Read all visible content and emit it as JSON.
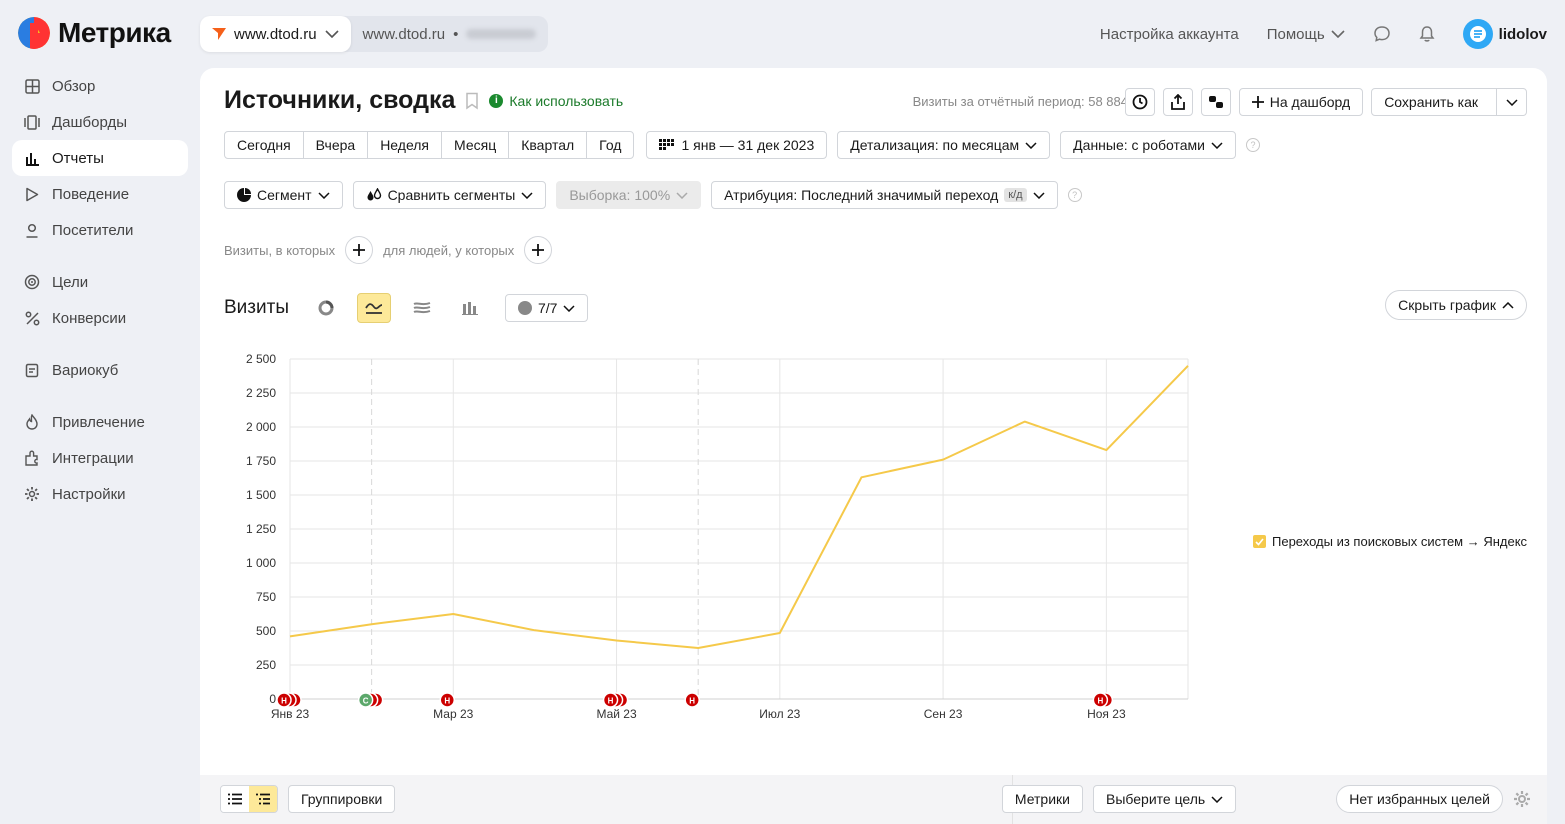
{
  "app": {
    "name": "Метрика"
  },
  "site_tabs": [
    {
      "label": "www.dtod.ru"
    },
    {
      "label": "www.dtod.ru",
      "separator": "•"
    }
  ],
  "topnav": {
    "account_settings": "Настройка аккаунта",
    "help": "Помощь",
    "username": "lidolov"
  },
  "sidebar": {
    "items": [
      {
        "label": "Обзор",
        "icon": "overview-icon"
      },
      {
        "label": "Дашборды",
        "icon": "dashboards-icon"
      },
      {
        "label": "Отчеты",
        "icon": "reports-icon",
        "active": true
      },
      {
        "label": "Поведение",
        "icon": "behavior-icon"
      },
      {
        "label": "Посетители",
        "icon": "visitors-icon"
      },
      {
        "label": "Цели",
        "icon": "goals-icon"
      },
      {
        "label": "Конверсии",
        "icon": "conversions-icon"
      },
      {
        "label": "Вариокуб",
        "icon": "variocube-icon"
      },
      {
        "label": "Привлечение",
        "icon": "acquisition-icon"
      },
      {
        "label": "Интеграции",
        "icon": "integrations-icon"
      },
      {
        "label": "Настройки",
        "icon": "settings-icon"
      }
    ]
  },
  "report": {
    "title": "Источники, сводка",
    "how_to_use": "Как использовать",
    "visits_total_label": "Визиты за отчётный период: 58 884",
    "to_dashboard": "На дашборд",
    "save_as": "Сохранить как"
  },
  "period": {
    "presets": [
      "Сегодня",
      "Вчера",
      "Неделя",
      "Месяц",
      "Квартал",
      "Год"
    ],
    "range": "1 янв — 31 дек 2023",
    "detail": "Детализация: по месяцам",
    "data": "Данные: с роботами"
  },
  "filters": {
    "segment": "Сегмент",
    "compare": "Сравнить сегменты",
    "sample": "Выборка: 100%",
    "attribution": "Атрибуция: Последний значимый переход",
    "attribution_badge": "к/д"
  },
  "conditions": {
    "visits_where": "Визиты, в которых",
    "people_where": "для людей, у которых"
  },
  "chart_header": {
    "title": "Визиты",
    "series_count": "7/7",
    "hide_graph": "Скрыть график"
  },
  "chart_data": {
    "type": "line",
    "x": [
      "Янв 23",
      "Фев 23",
      "Мар 23",
      "Апр 23",
      "Май 23",
      "Июн 23",
      "Июл 23",
      "Авг 23",
      "Сен 23",
      "Окт 23",
      "Ноя 23",
      "Дек 23"
    ],
    "x_tick_labels": [
      "Янв 23",
      "Мар 23",
      "Май 23",
      "Июл 23",
      "Сен 23",
      "Ноя 23"
    ],
    "y_ticks": [
      "0",
      "250",
      "500",
      "750",
      "1 000",
      "1 250",
      "1 500",
      "1 750",
      "2 000",
      "2 250",
      "2 500"
    ],
    "ylim": [
      0,
      2500
    ],
    "series": [
      {
        "name": "Переходы из поисковых систем → Яндекс",
        "color": "#f5c94a",
        "values": [
          460,
          550,
          625,
          505,
          430,
          375,
          485,
          1630,
          1760,
          2040,
          1830,
          2450
        ]
      }
    ],
    "grid": true,
    "legend": "right",
    "annotations": [
      {
        "month": 0,
        "labels": [
          "Н",
          "",
          ""
        ],
        "color": "#cc0000"
      },
      {
        "month": 1,
        "labels": [
          "С",
          "",
          ""
        ],
        "color": "#cc0000",
        "first_color": "#5ca86b"
      },
      {
        "month": 2,
        "labels": [
          "Н"
        ],
        "color": "#cc0000"
      },
      {
        "month": 4,
        "labels": [
          "Н",
          "",
          ""
        ],
        "color": "#cc0000"
      },
      {
        "month": 5,
        "labels": [
          "Н"
        ],
        "color": "#cc0000"
      },
      {
        "month": 10,
        "labels": [
          "Н",
          ""
        ],
        "color": "#cc0000"
      }
    ],
    "dashed_x": [
      1,
      5
    ]
  },
  "bottom": {
    "groupings": "Группировки",
    "metrics": "Метрики",
    "choose_goal": "Выберите цель",
    "no_fav_goals": "Нет избранных целей"
  }
}
